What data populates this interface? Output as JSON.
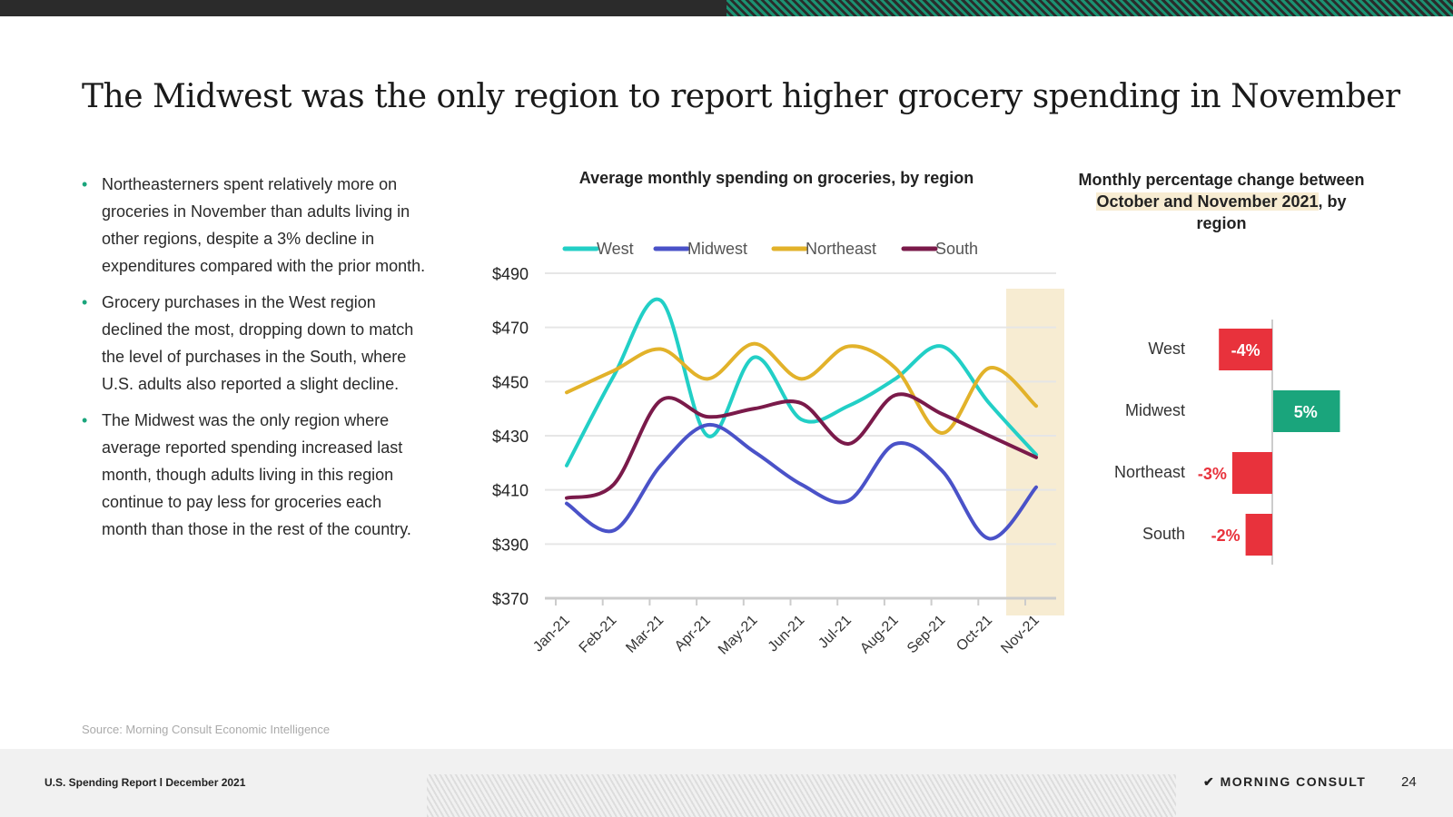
{
  "title": "The Midwest was the only region to report higher grocery spending in November",
  "bullets": [
    "Northeasterners spent relatively more on groceries in November than adults living in other regions, despite a 3% decline in expenditures compared with the prior month.",
    "Grocery purchases in the West region declined the most, dropping down to match the level of purchases in the South, where U.S. adults also reported a slight decline.",
    "The Midwest was the only region where average reported spending increased last month, though adults living in this region continue to pay less for groceries each month than those in the rest of the country."
  ],
  "source": "Source: Morning Consult Economic Intelligence",
  "footer": {
    "report": "U.S. Spending Report l December 2021",
    "logo": "MORNING CONSULT",
    "page": "24"
  },
  "chart_data": [
    {
      "type": "line",
      "title": "Average monthly spending on groceries, by region",
      "categories": [
        "Jan-21",
        "Feb-21",
        "Mar-21",
        "Apr-21",
        "May-21",
        "Jun-21",
        "Jul-21",
        "Aug-21",
        "Sep-21",
        "Oct-21",
        "Nov-21"
      ],
      "yticks": [
        "$490",
        "$470",
        "$450",
        "$430",
        "$410",
        "$390",
        "$370"
      ],
      "ylim": [
        370,
        490
      ],
      "legend_position": "top",
      "highlight": "Nov-21",
      "series": [
        {
          "name": "West",
          "color": "#22cfc6",
          "values": [
            419,
            452,
            480,
            430,
            459,
            436,
            441,
            451,
            463,
            442,
            423
          ]
        },
        {
          "name": "Midwest",
          "color": "#4a52c8",
          "values": [
            405,
            395,
            419,
            434,
            424,
            412,
            406,
            427,
            417,
            392,
            411
          ]
        },
        {
          "name": "Northeast",
          "color": "#e2b22a",
          "values": [
            446,
            454,
            462,
            451,
            464,
            451,
            463,
            455,
            431,
            455,
            441
          ]
        },
        {
          "name": "South",
          "color": "#7a1a4a",
          "values": [
            407,
            412,
            443,
            437,
            440,
            442,
            427,
            445,
            438,
            430,
            422
          ]
        }
      ]
    },
    {
      "type": "bar",
      "title_parts": [
        "Monthly percentage change between ",
        "October and November 2021",
        ", by region"
      ],
      "categories": [
        "West",
        "Midwest",
        "Northeast",
        "South"
      ],
      "values": [
        -4,
        5,
        -3,
        -2
      ],
      "labels": [
        "-4%",
        "5%",
        "-3%",
        "-2%"
      ],
      "colors": {
        "negative": "#e8323c",
        "positive": "#1aa57c"
      }
    }
  ]
}
